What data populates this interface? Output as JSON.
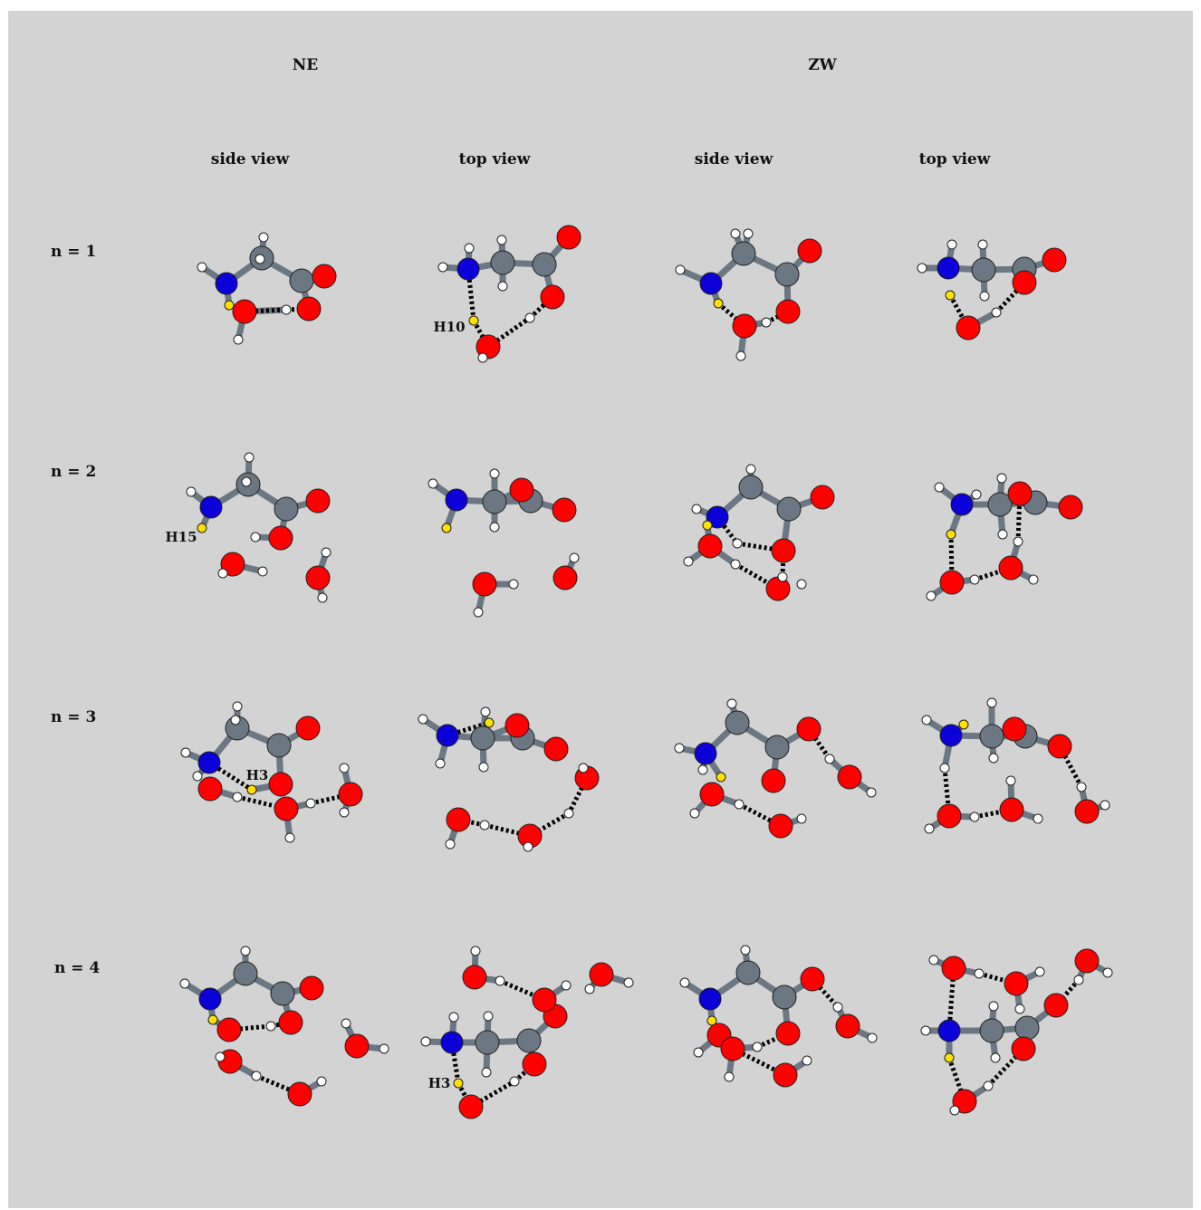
{
  "groups": {
    "ne": "NE",
    "zw": "ZW"
  },
  "views": {
    "side": "side view",
    "top": "top view"
  },
  "rows": {
    "n1": "n = 1",
    "n2": "n = 2",
    "n3": "n = 3",
    "n4": "n = 4"
  },
  "atom_labels": {
    "h10": "H10",
    "h15": "H15",
    "h3a": "H3",
    "h3b": "H3"
  },
  "colors": {
    "background": "#d3d3d3",
    "nitrogen": "#0b00d8",
    "carbon": "#6b7783",
    "oxygen": "#ff0000",
    "hydrogen": "#ffffff",
    "labeled_hydrogen": "#ffe000",
    "hbond": "#000000"
  }
}
